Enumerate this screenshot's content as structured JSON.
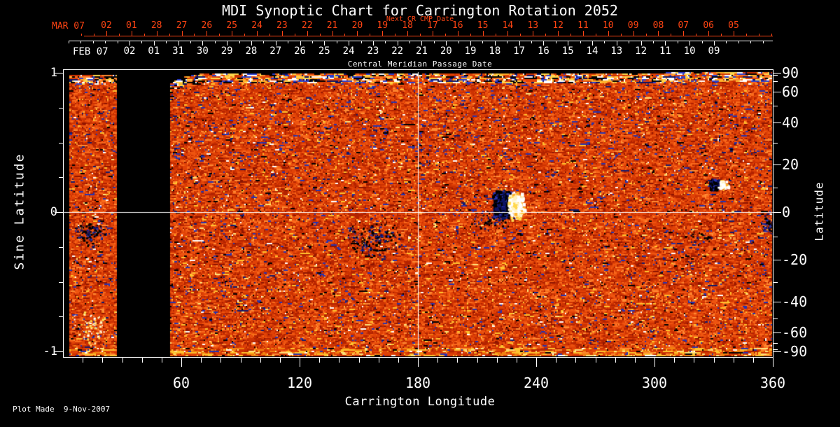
{
  "chart_data": {
    "type": "heatmap",
    "title": "MDI Synoptic Chart for Carrington Rotation 2052",
    "carrington_rotation": 2052,
    "plot_made": "Plot Made  9-Nov-2007",
    "colors": {
      "background": "#000000",
      "text": "#ffffff",
      "line": "#ffffff",
      "axis_red": "#ff4413"
    },
    "axes": {
      "next_cr": {
        "label": "Next CR CMP Date",
        "month": "MAR 07",
        "days": [
          "02",
          "01",
          "28",
          "27",
          "26",
          "25",
          "24",
          "23",
          "22",
          "21",
          "20",
          "19",
          "18",
          "17",
          "16",
          "15",
          "14",
          "13",
          "12",
          "11",
          "10",
          "09",
          "08",
          "07",
          "06",
          "05"
        ],
        "color": "#ff4413"
      },
      "cmp": {
        "label": "Central Meridian Passage Date",
        "month": "FEB 07",
        "days": [
          "02",
          "01",
          "31",
          "30",
          "29",
          "28",
          "27",
          "26",
          "25",
          "24",
          "23",
          "22",
          "21",
          "20",
          "19",
          "18",
          "17",
          "16",
          "15",
          "14",
          "13",
          "12",
          "11",
          "10",
          "09"
        ],
        "color": "#ffffff"
      },
      "x": {
        "label": "Carrington Longitude",
        "min": 0,
        "max": 360,
        "major_ticks": [
          60,
          120,
          180,
          240,
          300,
          360
        ],
        "minor_step": 10
      },
      "y_left": {
        "label": "Sine Latitude",
        "min": -1,
        "max": 1,
        "major_ticks": [
          1,
          0,
          -1
        ],
        "minor_step": 0.25
      },
      "y_right": {
        "label": "Latitude",
        "scale": "sine",
        "major_ticks": [
          90,
          60,
          40,
          20,
          0,
          -20,
          -40,
          -60,
          -90
        ],
        "minor_step": 10
      }
    },
    "reference_lines": {
      "longitude_deg": 180,
      "sine_latitude": 0
    },
    "data_coverage": {
      "strip_longitude": [
        3.5,
        27.5
      ],
      "gap_longitude": [
        27.5,
        54.5
      ],
      "main_longitude": [
        54.5,
        359.6
      ]
    },
    "palette": {
      "base": [
        [
          "#8f1500",
          5
        ],
        [
          "#b32300",
          16
        ],
        [
          "#cc3202",
          20
        ],
        [
          "#e04207",
          22
        ],
        [
          "#ee5410",
          14
        ],
        [
          "#f96a1c",
          8
        ],
        [
          "#ff8a33",
          4.5
        ],
        [
          "#ffc22e",
          2.2
        ],
        [
          "#ffe27a",
          0.6
        ],
        [
          "#ffffff",
          0.7
        ],
        [
          "#2733b0",
          2.0
        ],
        [
          "#121a6e",
          1.2
        ],
        [
          "#000000",
          1.8
        ]
      ],
      "top_band": [
        [
          "#ffffff",
          14
        ],
        [
          "#ffd84d",
          13
        ],
        [
          "#ffb22a",
          8
        ],
        [
          "#2b3fd0",
          10
        ],
        [
          "#0c1366",
          6
        ],
        [
          "#000000",
          12
        ],
        [
          "#e04207",
          16
        ],
        [
          "#cc3202",
          10
        ],
        [
          "#ff8a33",
          7
        ],
        [
          "#f96a1c",
          4
        ]
      ],
      "bottom_band": [
        [
          "#ffc22e",
          16
        ],
        [
          "#ffe27a",
          7
        ],
        [
          "#f2820f",
          18
        ],
        [
          "#e04207",
          22
        ],
        [
          "#cc3202",
          16
        ],
        [
          "#b32300",
          8
        ],
        [
          "#ffffff",
          2
        ],
        [
          "#2733b0",
          3
        ],
        [
          "#000000",
          3
        ],
        [
          "#ff8a33",
          5
        ]
      ]
    },
    "active_regions": [
      {
        "name": "strip-region",
        "longitude": 13.5,
        "sine_latitude": -0.15,
        "polarity": "negative",
        "extent_deg": 8,
        "extent_sine": 0.1,
        "density": 0.55,
        "style": "scatter"
      },
      {
        "name": "decayed-region-157",
        "longitude": 157,
        "sine_latitude": -0.19,
        "polarity": "negative",
        "extent_deg": 15,
        "extent_sine": 0.13,
        "density": 0.3,
        "style": "scatter"
      },
      {
        "name": "main-ar-negative",
        "longitude": 222.5,
        "sine_latitude": 0.06,
        "polarity": "negative",
        "extent_deg": 5.5,
        "extent_sine": 0.115,
        "density": 1.1,
        "style": "core"
      },
      {
        "name": "main-ar-positive",
        "longitude": 229.5,
        "sine_latitude": 0.05,
        "polarity": "positive",
        "extent_deg": 4.2,
        "extent_sine": 0.105,
        "density": 1.1,
        "style": "core"
      },
      {
        "name": "main-ar-trail",
        "longitude": 216,
        "sine_latitude": -0.05,
        "polarity": "negative",
        "extent_deg": 10,
        "extent_sine": 0.1,
        "density": 0.22,
        "style": "scatter"
      },
      {
        "name": "ar-330-negative",
        "longitude": 330,
        "sine_latitude": 0.205,
        "polarity": "negative",
        "extent_deg": 3,
        "extent_sine": 0.04,
        "density": 1.2,
        "style": "core"
      },
      {
        "name": "ar-330-positive",
        "longitude": 334.5,
        "sine_latitude": 0.2,
        "polarity": "positive",
        "extent_deg": 2.6,
        "extent_sine": 0.035,
        "density": 1.1,
        "style": "core"
      },
      {
        "name": "east-limb-region",
        "longitude": 357,
        "sine_latitude": -0.08,
        "polarity": "negative",
        "extent_deg": 3.5,
        "extent_sine": 0.09,
        "density": 0.6,
        "style": "scatter"
      },
      {
        "name": "scatter-322",
        "longitude": 322,
        "sine_latitude": -0.17,
        "polarity": "negative",
        "extent_deg": 9,
        "extent_sine": 0.05,
        "density": 0.18,
        "style": "scatter"
      },
      {
        "name": "bright-south-strip",
        "longitude": 13.5,
        "sine_latitude": -0.82,
        "polarity": "positive",
        "extent_deg": 9,
        "extent_sine": 0.14,
        "density": 0.22,
        "style": "scatter"
      }
    ]
  }
}
